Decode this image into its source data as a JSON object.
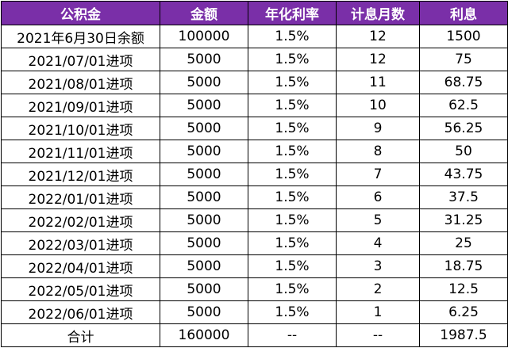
{
  "table": {
    "header_color": "#7a2fa8",
    "columns": [
      "公积金",
      "金额",
      "年化利率",
      "计息月数",
      "利息"
    ],
    "rows": [
      [
        "2021年6月30日余额",
        "100000",
        "1.5%",
        "12",
        "1500"
      ],
      [
        "2021/07/01进项",
        "5000",
        "1.5%",
        "12",
        "75"
      ],
      [
        "2021/08/01进项",
        "5000",
        "1.5%",
        "11",
        "68.75"
      ],
      [
        "2021/09/01进项",
        "5000",
        "1.5%",
        "10",
        "62.5"
      ],
      [
        "2021/10/01进项",
        "5000",
        "1.5%",
        "9",
        "56.25"
      ],
      [
        "2021/11/01进项",
        "5000",
        "1.5%",
        "8",
        "50"
      ],
      [
        "2021/12/01进项",
        "5000",
        "1.5%",
        "7",
        "43.75"
      ],
      [
        "2022/01/01进项",
        "5000",
        "1.5%",
        "6",
        "37.5"
      ],
      [
        "2022/02/01进项",
        "5000",
        "1.5%",
        "5",
        "31.25"
      ],
      [
        "2022/03/01进项",
        "5000",
        "1.5%",
        "4",
        "25"
      ],
      [
        "2022/04/01进项",
        "5000",
        "1.5%",
        "3",
        "18.75"
      ],
      [
        "2022/05/01进项",
        "5000",
        "1.5%",
        "2",
        "12.5"
      ],
      [
        "2022/06/01进项",
        "5000",
        "1.5%",
        "1",
        "6.25"
      ],
      [
        "合计",
        "160000",
        "--",
        "--",
        "1987.5"
      ]
    ]
  }
}
